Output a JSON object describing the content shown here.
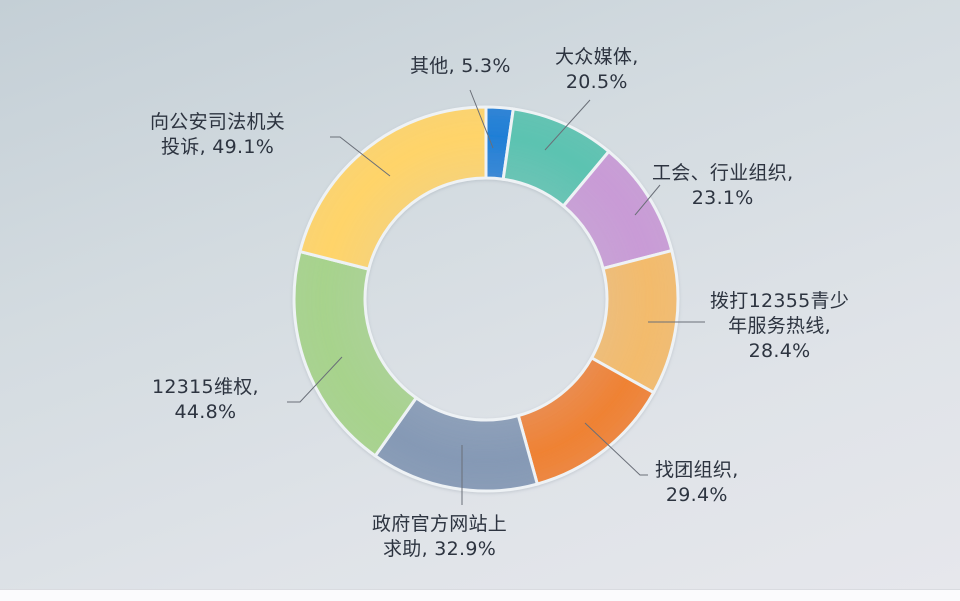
{
  "chart_data": {
    "type": "pie",
    "subtype": "donut",
    "title": "",
    "unit": "%",
    "start_angle_deg": 0,
    "direction": "clockwise",
    "categories": [
      "其他",
      "大众媒体",
      "工会、行业组织",
      "拨打12355青少年服务热线",
      "找团组织",
      "政府官方网站上求助",
      "12315维权",
      "向公安司法机关投诉"
    ],
    "values": [
      5.3,
      20.5,
      23.1,
      28.4,
      29.4,
      32.9,
      44.8,
      49.1
    ],
    "colors": [
      "#1f7fd6",
      "#5cc3b1",
      "#c99bd6",
      "#f3bb6c",
      "#ef8233",
      "#8599b5",
      "#a7d38c",
      "#ffd469"
    ],
    "legend": "none",
    "data_labels": "outside with leader lines"
  },
  "labels": [
    {
      "line1": "其他, 5.3%",
      "line2": "",
      "line3": ""
    },
    {
      "line1": "大众媒体,",
      "line2": "20.5%",
      "line3": ""
    },
    {
      "line1": "工会、行业组织,",
      "line2": "23.1%",
      "line3": ""
    },
    {
      "line1": "拨打12355青少",
      "line2": "年服务热线,",
      "line3": "28.4%"
    },
    {
      "line1": "找团组织,",
      "line2": "29.4%",
      "line3": ""
    },
    {
      "line1": "政府官方网站上",
      "line2": "求助, 32.9%",
      "line3": ""
    },
    {
      "line1": "12315维权,",
      "line2": "44.8%",
      "line3": ""
    },
    {
      "line1": "向公安司法机关",
      "line2": "投诉, 49.1%",
      "line3": ""
    }
  ],
  "style": {
    "background_top": "#c4cfd6",
    "background_bottom": "#e6e7ec",
    "separator": "#eef2f5",
    "leader_line": "#6a6f78",
    "text": "#2d3440"
  }
}
